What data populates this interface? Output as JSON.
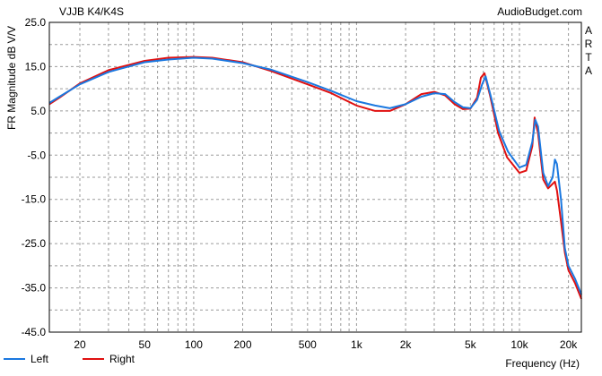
{
  "header": {
    "title": "VJJB K4/K4S",
    "brand": "AudioBudget.com",
    "side_label": "ARTA"
  },
  "chart_data": {
    "type": "line",
    "title": "VJJB K4/K4S",
    "ylabel": "FR Magnitude dB V/V",
    "xlabel": "Frequency (Hz)",
    "x_scale": "log",
    "xlim": [
      13,
      24000
    ],
    "ylim": [
      -45,
      25
    ],
    "grid": true,
    "legend_position": "bottom-left",
    "y_ticks": [
      25.0,
      15.0,
      5.0,
      -5.0,
      -15.0,
      -25.0,
      -35.0,
      -45.0
    ],
    "y_tick_labels": [
      "25.0",
      "15.0",
      "5.0",
      "-5.0",
      "-15.0",
      "-25.0",
      "-35.0",
      "-45.0"
    ],
    "x_ticks": [
      20,
      50,
      100,
      200,
      500,
      1000,
      2000,
      5000,
      10000,
      20000
    ],
    "x_tick_labels": [
      "20",
      "50",
      "100",
      "200",
      "500",
      "1k",
      "2k",
      "5k",
      "10k",
      "20k"
    ],
    "colors": {
      "Left": "#1a78e0",
      "Right": "#e01010"
    },
    "series": [
      {
        "name": "Left",
        "color": "#1a78e0",
        "x": [
          13,
          15,
          20,
          30,
          50,
          70,
          100,
          130,
          200,
          300,
          500,
          700,
          1000,
          1300,
          1600,
          2000,
          2500,
          3000,
          3500,
          4000,
          4500,
          5000,
          5500,
          5900,
          6200,
          6700,
          7500,
          8500,
          10000,
          11000,
          12000,
          12500,
          13000,
          14000,
          15000,
          16000,
          16500,
          17000,
          18000,
          19000,
          20000,
          22000,
          24000
        ],
        "y": [
          6.8,
          8.2,
          11.0,
          13.8,
          16.0,
          16.6,
          17.0,
          16.8,
          15.8,
          14.3,
          11.5,
          9.5,
          7.2,
          6.2,
          5.6,
          6.5,
          8.2,
          9.0,
          8.8,
          7.0,
          5.8,
          5.6,
          7.5,
          11.0,
          12.8,
          8.0,
          0.5,
          -4.2,
          -7.8,
          -7.2,
          -2.0,
          3.0,
          1.5,
          -9.0,
          -12.0,
          -10.0,
          -6.0,
          -7.0,
          -15.0,
          -26.0,
          -30.0,
          -33.0,
          -36.5
        ]
      },
      {
        "name": "Right",
        "color": "#e01010",
        "x": [
          13,
          15,
          20,
          30,
          50,
          70,
          100,
          130,
          200,
          300,
          500,
          700,
          1000,
          1300,
          1600,
          2000,
          2500,
          3000,
          3500,
          4000,
          4500,
          5000,
          5500,
          5800,
          6100,
          6600,
          7400,
          8400,
          10000,
          11000,
          12000,
          12400,
          13000,
          14000,
          15000,
          16000,
          16500,
          17000,
          18000,
          19000,
          20000,
          22000,
          24000
        ],
        "y": [
          6.5,
          8.0,
          11.2,
          14.2,
          16.3,
          17.0,
          17.2,
          17.0,
          16.0,
          14.0,
          11.0,
          9.0,
          6.2,
          5.0,
          5.0,
          6.5,
          8.8,
          9.3,
          8.5,
          6.5,
          5.4,
          5.5,
          8.0,
          12.5,
          13.5,
          8.5,
          0.0,
          -5.5,
          -9.0,
          -8.5,
          -3.0,
          3.5,
          0.0,
          -10.5,
          -12.5,
          -11.5,
          -11.0,
          -13.0,
          -20.0,
          -27.0,
          -31.0,
          -34.0,
          -37.5
        ]
      }
    ]
  }
}
